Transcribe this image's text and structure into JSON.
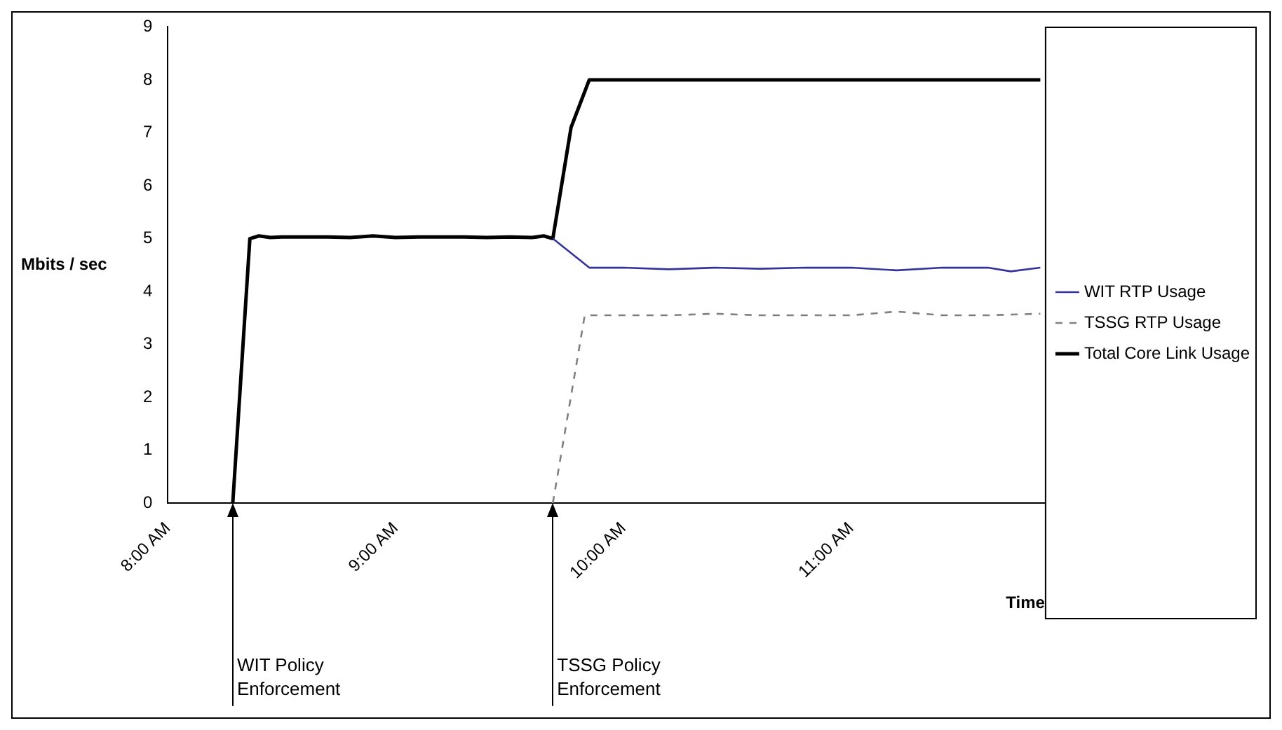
{
  "chart_data": {
    "type": "line",
    "xlabel": "Time",
    "ylabel": "Mbits / sec",
    "xlim": [
      8,
      11.85
    ],
    "xticks": [
      {
        "value": 8,
        "label": "8:00 AM"
      },
      {
        "value": 9,
        "label": "9:00 AM"
      },
      {
        "value": 10,
        "label": "10:00 AM"
      },
      {
        "value": 11,
        "label": "11:00 AM"
      }
    ],
    "ylim": [
      0,
      9
    ],
    "yticks": [
      0,
      1,
      2,
      3,
      4,
      5,
      6,
      7,
      8,
      9
    ],
    "grid": false,
    "legend": "right",
    "marker": "none",
    "series": [
      {
        "name": "WIT RTP Usage",
        "color": "#333399",
        "line_style": "solid",
        "x": [
          9.69,
          9.85,
          10.0,
          10.2,
          10.4,
          10.6,
          10.8,
          11.0,
          11.2,
          11.4,
          11.6,
          11.7,
          11.83
        ],
        "values": [
          5.0,
          4.45,
          4.45,
          4.42,
          4.45,
          4.43,
          4.45,
          4.45,
          4.4,
          4.45,
          4.45,
          4.38,
          4.45
        ]
      },
      {
        "name": "TSSG RTP Usage",
        "color": "#808080",
        "line_style": "dashed",
        "x": [
          9.69,
          9.83,
          10.0,
          10.2,
          10.4,
          10.6,
          10.8,
          11.0,
          11.2,
          11.4,
          11.6,
          11.83
        ],
        "values": [
          0,
          3.55,
          3.55,
          3.55,
          3.58,
          3.55,
          3.55,
          3.55,
          3.62,
          3.55,
          3.55,
          3.58
        ]
      },
      {
        "name": "Total Core Link Usage",
        "color": "#000000",
        "line_style": "solid",
        "x": [
          8.285,
          8.36,
          8.4,
          8.45,
          8.5,
          8.6,
          8.7,
          8.8,
          8.9,
          9.0,
          9.1,
          9.2,
          9.3,
          9.4,
          9.5,
          9.6,
          9.65,
          9.69,
          9.77,
          9.85,
          10.0,
          10.5,
          11.0,
          11.5,
          11.83
        ],
        "values": [
          0,
          5.0,
          5.05,
          5.02,
          5.03,
          5.03,
          5.03,
          5.02,
          5.05,
          5.02,
          5.03,
          5.03,
          5.03,
          5.02,
          5.03,
          5.02,
          5.05,
          5.0,
          7.1,
          8.0,
          8.0,
          8.0,
          8.0,
          8.0,
          8.0
        ]
      }
    ],
    "annotations": [
      {
        "text": "WIT Policy Enforcement",
        "x": 8.285,
        "y": 0
      },
      {
        "text": "TSSG Policy Enforcement",
        "x": 9.69,
        "y": 0
      }
    ]
  }
}
